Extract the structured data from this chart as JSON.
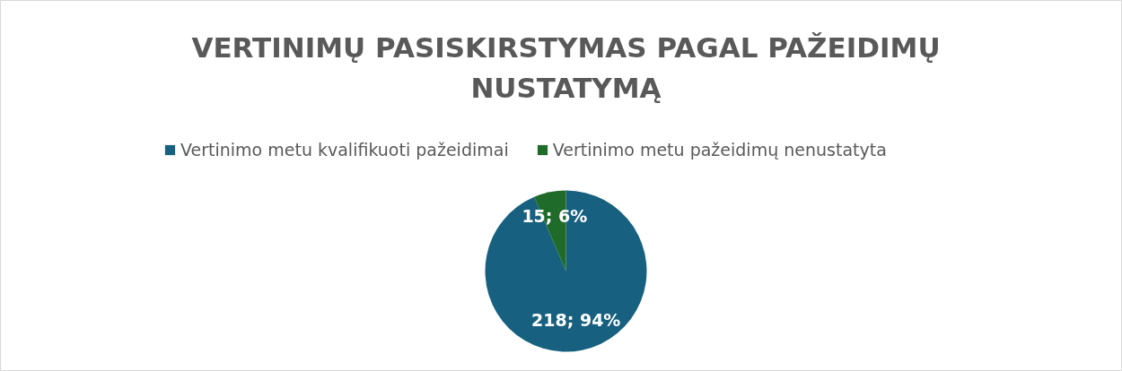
{
  "chart_data": {
    "type": "pie",
    "title": "VERTINIMŲ PASISKIRSTYMAS PAGAL PAŽEIDIMŲ NUSTATYMĄ",
    "categories": [
      "Vertinimo metu kvalifikuoti pažeidimai",
      "Vertinimo metu pažeidimų nenustatyta"
    ],
    "values": [
      218,
      15
    ],
    "colors": [
      "#17607f",
      "#1e6b2a"
    ],
    "value_labels": [
      "218; 94%",
      "15; 6%"
    ],
    "legend": "top"
  }
}
